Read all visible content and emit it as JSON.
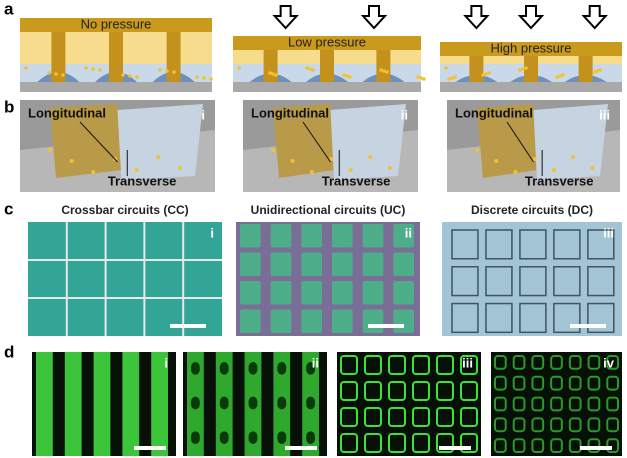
{
  "panel_a": {
    "label": "a",
    "captions": [
      "No pressure",
      "Low pressure",
      "High pressure"
    ]
  },
  "panel_b": {
    "label": "b",
    "views": [
      {
        "longitudinal": "Longitudinal",
        "transverse": "Transverse",
        "numeral": "i"
      },
      {
        "longitudinal": "Longitudinal",
        "transverse": "Transverse",
        "numeral": "ii"
      },
      {
        "longitudinal": "Longitudinal",
        "transverse": "Transverse",
        "numeral": "iii"
      }
    ]
  },
  "panel_c": {
    "label": "c",
    "images": [
      {
        "title": "Crossbar circuits (CC)",
        "numeral": "i"
      },
      {
        "title": "Unidirectional circuits (UC)",
        "numeral": "ii"
      },
      {
        "title": "Discrete circuits (DC)",
        "numeral": "iii"
      }
    ]
  },
  "panel_d": {
    "label": "d",
    "numerals": [
      "i",
      "ii",
      "iii",
      "iv"
    ]
  }
}
